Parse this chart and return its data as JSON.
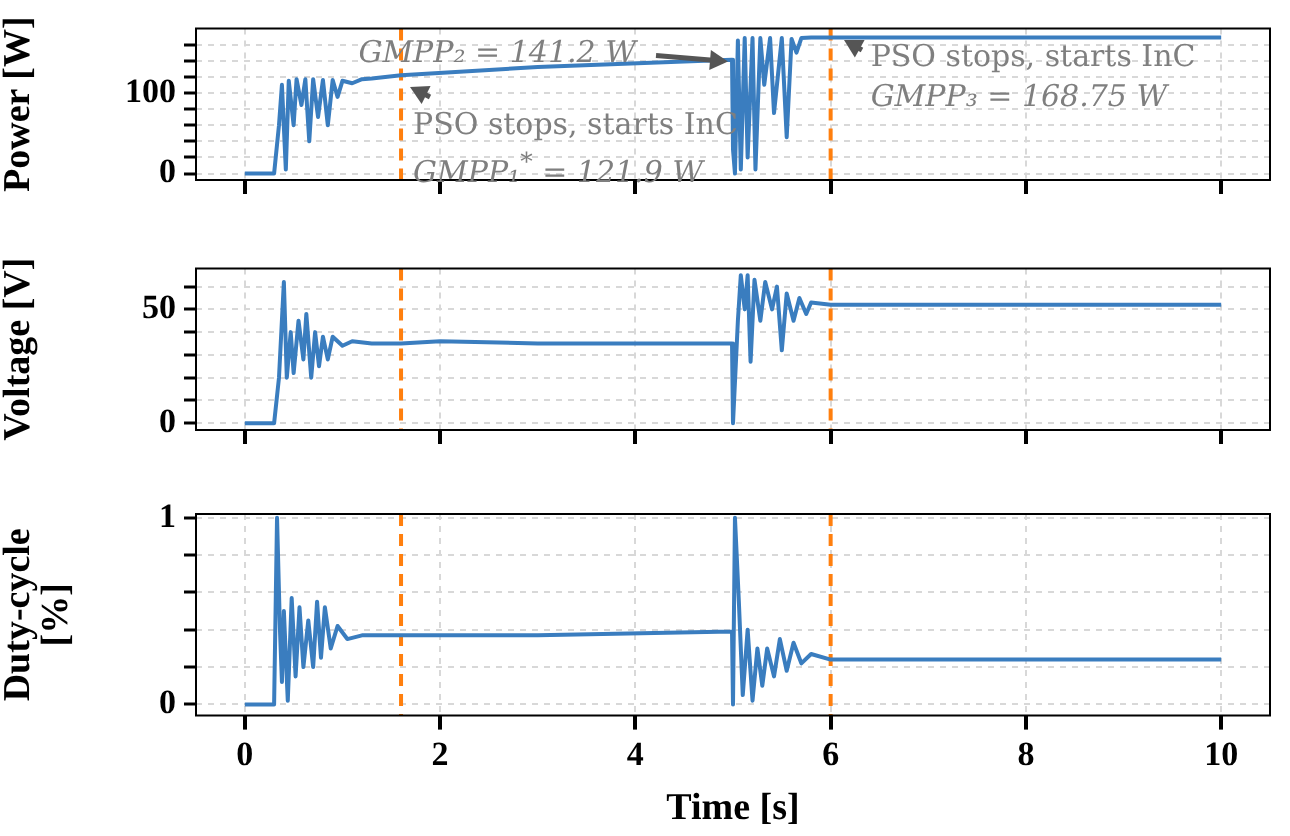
{
  "chart_data": [
    {
      "type": "line",
      "ylabel": "Power [W]",
      "color": "#3a7dbf",
      "xlim": [
        -0.5,
        10.5
      ],
      "xticks": [
        0,
        2,
        4,
        6,
        8,
        10
      ],
      "ylim": [
        -8,
        180
      ],
      "yticks": [
        0,
        {
          "value": 20,
          "label": null
        },
        {
          "value": 40,
          "label": null
        },
        {
          "value": 60,
          "label": null
        },
        {
          "value": 80,
          "label": null
        },
        100,
        {
          "value": 120,
          "label": null
        },
        {
          "value": 140,
          "label": null
        },
        {
          "value": 160,
          "label": null
        }
      ],
      "grid": true,
      "tick_labels": "y",
      "line_style": "solid",
      "marker": "none",
      "x": [
        0,
        0.3,
        0.35,
        0.38,
        0.42,
        0.45,
        0.5,
        0.53,
        0.58,
        0.62,
        0.66,
        0.7,
        0.75,
        0.8,
        0.85,
        0.9,
        0.95,
        1.0,
        1.1,
        1.2,
        1.3,
        1.6,
        3,
        4.5,
        4.99,
        5.0,
        5.02,
        5.05,
        5.08,
        5.12,
        5.15,
        5.2,
        5.23,
        5.28,
        5.32,
        5.38,
        5.42,
        5.5,
        5.55,
        5.6,
        5.65,
        5.7,
        5.8,
        10
      ],
      "values": [
        0,
        0,
        60,
        110,
        5,
        115,
        60,
        117,
        85,
        117,
        40,
        117,
        70,
        116,
        60,
        116,
        95,
        115,
        112,
        117,
        118,
        122,
        132,
        139,
        141.2,
        30,
        0,
        165,
        5,
        168,
        20,
        168,
        5,
        168,
        110,
        168,
        75,
        168,
        45,
        167,
        150,
        168,
        168.75,
        168.75
      ],
      "ref_lines": [
        {
          "axis": "x",
          "value": 1.6,
          "color": "#ff7f0e",
          "line_style": "dashed"
        },
        {
          "axis": "x",
          "value": 6,
          "color": "#ff7f0e",
          "line_style": "dashed"
        }
      ],
      "annotations": [
        "GMPP₂ = 141.2 W",
        {
          "text": "PSO stops, starts InC\nGMPP₁$^{*}$ = 121.9 W",
          "x": 1.6,
          "y": 122
        },
        {
          "text": "PSO stops, starts InC\nGMPP₃ = 168.75 W",
          "x": 6,
          "y": 168.75
        }
      ]
    },
    {
      "type": "line",
      "ylabel": "Voltage [V]",
      "color": "#3a7dbf",
      "xlim": [
        -0.5,
        10.5
      ],
      "xticks": [
        0,
        2,
        4,
        6,
        8,
        10
      ],
      "ylim": [
        -3,
        68
      ],
      "yticks": [
        0,
        {
          "value": 10,
          "label": null
        },
        {
          "value": 20,
          "label": null
        },
        {
          "value": 30,
          "label": null
        },
        {
          "value": 40,
          "label": null
        },
        50,
        {
          "value": 60,
          "label": null
        }
      ],
      "grid": true,
      "tick_labels": "y",
      "line_style": "solid",
      "marker": "none",
      "x": [
        0,
        0.3,
        0.35,
        0.4,
        0.43,
        0.47,
        0.5,
        0.55,
        0.6,
        0.63,
        0.68,
        0.72,
        0.76,
        0.8,
        0.85,
        0.9,
        1.0,
        1.1,
        1.3,
        1.6,
        2,
        3,
        4,
        4.99,
        5.0,
        5.05,
        5.08,
        5.12,
        5.15,
        5.18,
        5.22,
        5.28,
        5.33,
        5.4,
        5.45,
        5.5,
        5.55,
        5.62,
        5.68,
        5.75,
        5.8,
        6,
        10
      ],
      "values": [
        0,
        0,
        20,
        62,
        20,
        40,
        22,
        45,
        28,
        48,
        20,
        40,
        25,
        38,
        28,
        38,
        34,
        36,
        35,
        35,
        36,
        35,
        35,
        35,
        0,
        45,
        65,
        50,
        65,
        27,
        63,
        45,
        62,
        50,
        60,
        32,
        57,
        45,
        55,
        48,
        53,
        52,
        52
      ],
      "ref_lines": [
        {
          "axis": "x",
          "value": 1.6,
          "color": "#ff7f0e",
          "line_style": "dashed"
        },
        {
          "axis": "x",
          "value": 6,
          "color": "#ff7f0e",
          "line_style": "dashed"
        }
      ]
    },
    {
      "type": "line",
      "ylabel": "Duty-cycle [%]",
      "xlabel": "Time [s]",
      "color": "#3a7dbf",
      "xlim": [
        -0.5,
        10.5
      ],
      "xticks": [
        0,
        2,
        4,
        6,
        8,
        10
      ],
      "ylim": [
        -0.06,
        1.02
      ],
      "yticks": [
        0,
        {
          "value": 0.2,
          "label": null
        },
        {
          "value": 0.4,
          "label": null
        },
        {
          "value": 0.6,
          "label": null
        },
        {
          "value": 0.8,
          "label": null
        },
        1
      ],
      "grid": true,
      "line_style": "solid",
      "marker": "none",
      "x": [
        0,
        0.3,
        0.33,
        0.36,
        0.38,
        0.4,
        0.44,
        0.48,
        0.52,
        0.56,
        0.6,
        0.65,
        0.7,
        0.74,
        0.78,
        0.82,
        0.88,
        0.95,
        1.05,
        1.2,
        1.6,
        3,
        4.99,
        5.0,
        5.02,
        5.06,
        5.1,
        5.15,
        5.2,
        5.25,
        5.3,
        5.35,
        5.42,
        5.48,
        5.55,
        5.62,
        5.7,
        5.8,
        6,
        10
      ],
      "values": [
        0,
        0,
        1.0,
        0.4,
        0.12,
        0.5,
        0.02,
        0.57,
        0.15,
        0.52,
        0.2,
        0.45,
        0.2,
        0.55,
        0.25,
        0.52,
        0.3,
        0.42,
        0.35,
        0.37,
        0.37,
        0.37,
        0.39,
        0,
        1.0,
        0.55,
        0.05,
        0.4,
        0.02,
        0.3,
        0.1,
        0.3,
        0.15,
        0.35,
        0.18,
        0.33,
        0.22,
        0.27,
        0.24,
        0.24
      ],
      "ref_lines": [
        {
          "axis": "x",
          "value": 1.6,
          "color": "#ff7f0e",
          "line_style": "dashed"
        },
        {
          "axis": "x",
          "value": 6,
          "color": "#ff7f0e",
          "line_style": "dashed"
        }
      ]
    }
  ]
}
